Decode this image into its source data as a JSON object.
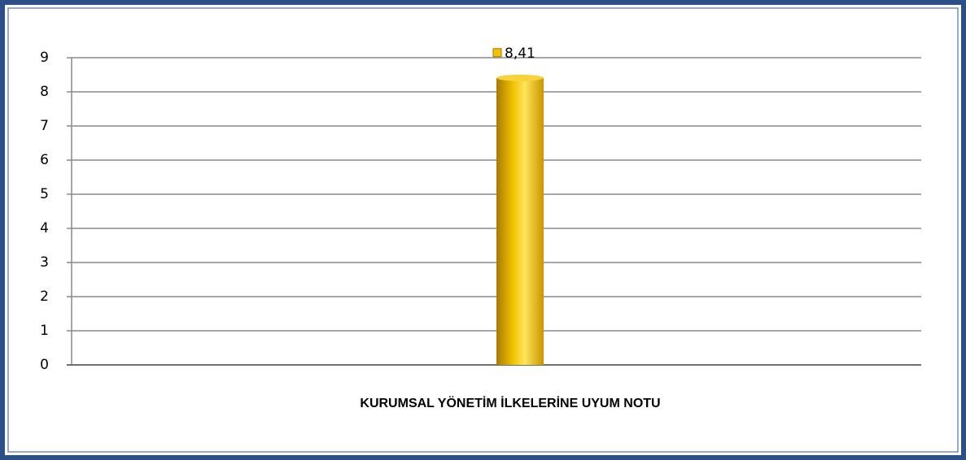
{
  "chart_data": {
    "type": "bar",
    "categories": [
      "KURUMSAL YÖNETİM İLKELERİNE UYUM NOTU"
    ],
    "values": [
      8.41
    ],
    "value_labels": [
      "8,41"
    ],
    "color": "#f2c200",
    "ylim": [
      0,
      9
    ],
    "yticks": [
      0,
      1,
      2,
      3,
      4,
      5,
      6,
      7,
      8,
      9
    ],
    "grid": true
  }
}
